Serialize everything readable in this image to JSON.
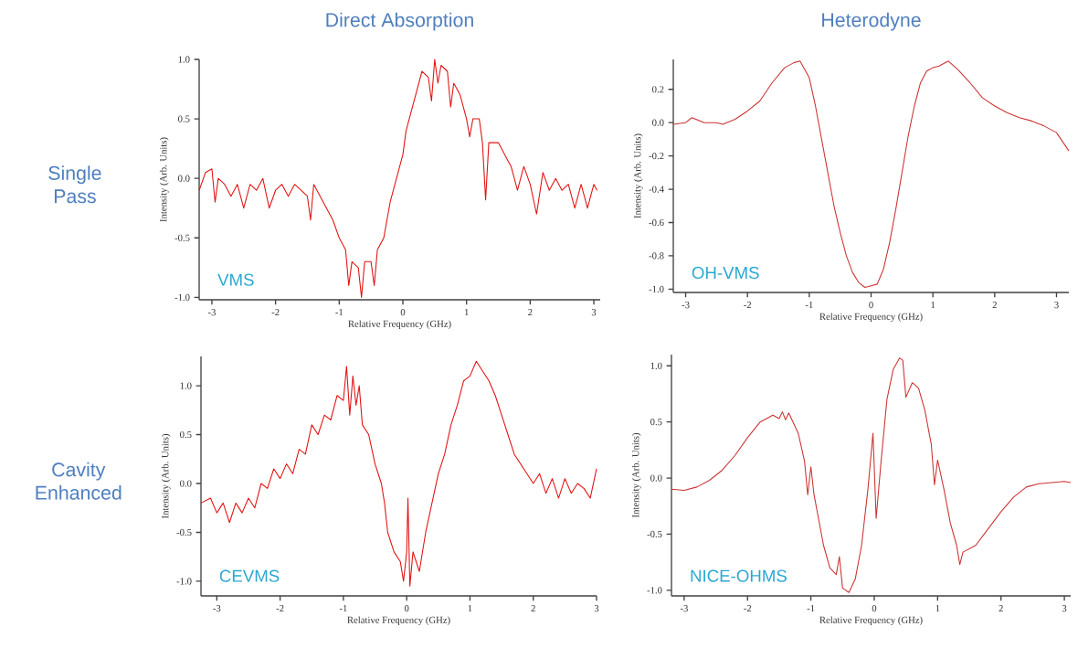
{
  "chart_data": [
    {
      "type": "line",
      "title": "Direct Absorption",
      "xlabel": "Relative Frequency (GHz)",
      "ylabel": "Intensity (Arb. Units)",
      "color": "#e21212",
      "annotations": [
        "VMS",
        "Single Pass"
      ],
      "xlim": [
        -3.2,
        3.1
      ],
      "ylim": [
        -1.02,
        1.0
      ],
      "xticks": [
        -3,
        -2,
        -1,
        0,
        1,
        2,
        3
      ],
      "yticks": [
        {
          "value": -1,
          "label": "-1.0"
        },
        {
          "value": -0.5,
          "label": "-0.5"
        },
        {
          "value": 0,
          "label": "0.0"
        },
        {
          "value": 0.5,
          "label": "0.5"
        },
        {
          "value": 1,
          "label": "1.0"
        }
      ],
      "x": [
        -3.2,
        -3.1,
        -3.0,
        -2.95,
        -2.9,
        -2.8,
        -2.7,
        -2.6,
        -2.5,
        -2.4,
        -2.3,
        -2.2,
        -2.1,
        -2.0,
        -1.9,
        -1.8,
        -1.7,
        -1.6,
        -1.5,
        -1.45,
        -1.4,
        -1.3,
        -1.2,
        -1.1,
        -1.0,
        -0.9,
        -0.85,
        -0.8,
        -0.7,
        -0.65,
        -0.6,
        -0.5,
        -0.45,
        -0.4,
        -0.3,
        -0.2,
        -0.1,
        0.0,
        0.05,
        0.1,
        0.2,
        0.3,
        0.4,
        0.45,
        0.5,
        0.55,
        0.6,
        0.7,
        0.75,
        0.8,
        0.9,
        1.0,
        1.05,
        1.1,
        1.2,
        1.25,
        1.3,
        1.35,
        1.5,
        1.6,
        1.7,
        1.8,
        1.9,
        2.0,
        2.1,
        2.2,
        2.3,
        2.4,
        2.5,
        2.6,
        2.7,
        2.8,
        2.9,
        3.0,
        3.05
      ],
      "values": [
        -0.1,
        0.05,
        0.08,
        -0.2,
        0.0,
        -0.05,
        -0.15,
        -0.05,
        -0.25,
        -0.05,
        -0.1,
        0.0,
        -0.25,
        -0.1,
        -0.05,
        -0.15,
        -0.05,
        -0.1,
        -0.15,
        -0.35,
        -0.05,
        -0.15,
        -0.25,
        -0.35,
        -0.5,
        -0.6,
        -0.9,
        -0.7,
        -0.75,
        -1.0,
        -0.7,
        -0.7,
        -0.9,
        -0.6,
        -0.5,
        -0.2,
        0.0,
        0.2,
        0.4,
        0.5,
        0.7,
        0.9,
        0.85,
        0.65,
        1.0,
        0.8,
        0.95,
        0.9,
        0.6,
        0.8,
        0.7,
        0.5,
        0.35,
        0.5,
        0.5,
        0.3,
        -0.18,
        0.3,
        0.3,
        0.2,
        0.1,
        -0.1,
        0.1,
        -0.05,
        -0.3,
        0.05,
        -0.1,
        0.0,
        -0.1,
        -0.05,
        -0.25,
        -0.05,
        -0.25,
        -0.05,
        -0.1
      ]
    },
    {
      "type": "line",
      "title": "Heterodyne",
      "xlabel": "Relative Frequency (GHz)",
      "ylabel": "Intensity (Arb. Units)",
      "color": "#cc3333",
      "annotations": [
        "OH-VMS"
      ],
      "xlim": [
        -3.2,
        3.2
      ],
      "ylim": [
        -1.02,
        0.38
      ],
      "xticks": [
        -3,
        -2,
        -1,
        0,
        1,
        2,
        3
      ],
      "yticks": [
        {
          "value": -1,
          "label": "-1.0"
        },
        {
          "value": -0.8,
          "label": "-0.8"
        },
        {
          "value": -0.6,
          "label": "-0.6"
        },
        {
          "value": -0.4,
          "label": "-0.4"
        },
        {
          "value": -0.2,
          "label": "-0.2"
        },
        {
          "value": 0,
          "label": "0.0"
        },
        {
          "value": 0.2,
          "label": "0.2"
        }
      ],
      "x": [
        -3.2,
        -3.0,
        -2.9,
        -2.7,
        -2.5,
        -2.4,
        -2.2,
        -2.0,
        -1.8,
        -1.6,
        -1.4,
        -1.25,
        -1.15,
        -1.0,
        -0.9,
        -0.8,
        -0.7,
        -0.6,
        -0.5,
        -0.4,
        -0.3,
        -0.2,
        -0.1,
        0.0,
        0.1,
        0.2,
        0.3,
        0.4,
        0.5,
        0.6,
        0.7,
        0.8,
        0.9,
        1.0,
        1.1,
        1.25,
        1.4,
        1.6,
        1.8,
        2.0,
        2.2,
        2.4,
        2.6,
        2.8,
        3.0,
        3.2
      ],
      "values": [
        -0.01,
        0.0,
        0.03,
        0.0,
        0.0,
        -0.01,
        0.02,
        0.07,
        0.13,
        0.24,
        0.33,
        0.36,
        0.37,
        0.27,
        0.1,
        -0.1,
        -0.3,
        -0.5,
        -0.66,
        -0.8,
        -0.9,
        -0.96,
        -0.99,
        -0.98,
        -0.97,
        -0.88,
        -0.72,
        -0.52,
        -0.3,
        -0.08,
        0.1,
        0.24,
        0.31,
        0.33,
        0.34,
        0.37,
        0.32,
        0.24,
        0.15,
        0.1,
        0.06,
        0.03,
        0.01,
        -0.02,
        -0.06,
        -0.17
      ]
    },
    {
      "type": "line",
      "xlabel": "Relative Frequency (GHz)",
      "ylabel": "Intensity (Arb. Units)",
      "color": "#e21212",
      "annotations": [
        "CEVMS",
        "Cavity Enhanced"
      ],
      "xlim": [
        -3.25,
        3.0
      ],
      "ylim": [
        -1.15,
        1.3
      ],
      "xticks": [
        -3,
        -2,
        -1,
        0,
        1,
        2,
        3
      ],
      "yticks": [
        {
          "value": -1,
          "label": "-1.0"
        },
        {
          "value": -0.5,
          "label": "-0.5"
        },
        {
          "value": 0,
          "label": "0.0"
        },
        {
          "value": 0.5,
          "label": "0.5"
        },
        {
          "value": 1,
          "label": "1.0"
        }
      ],
      "x": [
        -3.25,
        -3.1,
        -3.0,
        -2.9,
        -2.8,
        -2.7,
        -2.6,
        -2.5,
        -2.4,
        -2.3,
        -2.2,
        -2.1,
        -2.0,
        -1.9,
        -1.8,
        -1.7,
        -1.6,
        -1.5,
        -1.4,
        -1.3,
        -1.2,
        -1.1,
        -1.0,
        -0.95,
        -0.9,
        -0.85,
        -0.8,
        -0.75,
        -0.7,
        -0.6,
        -0.5,
        -0.4,
        -0.35,
        -0.3,
        -0.2,
        -0.1,
        -0.05,
        0.0,
        0.02,
        0.05,
        0.1,
        0.2,
        0.3,
        0.4,
        0.5,
        0.6,
        0.7,
        0.8,
        0.9,
        1.0,
        1.1,
        1.2,
        1.3,
        1.4,
        1.5,
        1.6,
        1.7,
        1.8,
        1.9,
        2.0,
        2.1,
        2.2,
        2.3,
        2.4,
        2.5,
        2.6,
        2.7,
        2.8,
        2.9,
        3.0
      ],
      "values": [
        -0.2,
        -0.15,
        -0.3,
        -0.2,
        -0.4,
        -0.2,
        -0.3,
        -0.15,
        -0.25,
        0.0,
        -0.05,
        0.15,
        0.05,
        0.2,
        0.1,
        0.35,
        0.3,
        0.6,
        0.5,
        0.7,
        0.65,
        0.9,
        0.85,
        1.2,
        0.7,
        1.1,
        0.8,
        1.0,
        0.6,
        0.5,
        0.2,
        0.0,
        -0.2,
        -0.5,
        -0.7,
        -0.8,
        -1.0,
        -0.7,
        -0.15,
        -1.05,
        -0.7,
        -0.9,
        -0.5,
        -0.2,
        0.1,
        0.3,
        0.6,
        0.8,
        1.05,
        1.1,
        1.25,
        1.15,
        1.05,
        0.9,
        0.7,
        0.5,
        0.3,
        0.2,
        0.1,
        0.0,
        0.1,
        -0.1,
        0.05,
        -0.15,
        0.05,
        -0.1,
        0.0,
        -0.05,
        -0.15,
        0.15
      ]
    },
    {
      "type": "line",
      "xlabel": "Relative Frequency (GHz)",
      "ylabel": "Intensity (Arb. Units)",
      "color": "#cc3333",
      "annotations": [
        "NICE-OHMS"
      ],
      "xlim": [
        -3.2,
        3.1
      ],
      "ylim": [
        -1.05,
        1.1
      ],
      "xticks": [
        -3,
        -2,
        -1,
        0,
        1,
        2,
        3
      ],
      "yticks": [
        {
          "value": -1,
          "label": "-1.0"
        },
        {
          "value": -0.5,
          "label": "-0.5"
        },
        {
          "value": 0,
          "label": "0.0"
        },
        {
          "value": 0.5,
          "label": "0.5"
        },
        {
          "value": 1,
          "label": "1.0"
        }
      ],
      "x": [
        -3.2,
        -3.0,
        -2.8,
        -2.6,
        -2.4,
        -2.2,
        -2.0,
        -1.8,
        -1.6,
        -1.5,
        -1.45,
        -1.4,
        -1.35,
        -1.2,
        -1.1,
        -1.05,
        -1.0,
        -0.95,
        -0.8,
        -0.7,
        -0.6,
        -0.55,
        -0.5,
        -0.4,
        -0.3,
        -0.2,
        -0.1,
        -0.02,
        0.03,
        0.1,
        0.2,
        0.3,
        0.4,
        0.45,
        0.5,
        0.6,
        0.7,
        0.8,
        0.9,
        0.95,
        1.0,
        1.1,
        1.2,
        1.3,
        1.35,
        1.4,
        1.6,
        1.8,
        2.0,
        2.2,
        2.4,
        2.6,
        2.8,
        3.0,
        3.1
      ],
      "values": [
        -0.1,
        -0.11,
        -0.08,
        -0.02,
        0.07,
        0.2,
        0.36,
        0.5,
        0.56,
        0.53,
        0.59,
        0.52,
        0.58,
        0.4,
        0.15,
        -0.15,
        0.1,
        -0.15,
        -0.6,
        -0.8,
        -0.86,
        -0.7,
        -0.98,
        -1.02,
        -0.9,
        -0.6,
        -0.1,
        0.4,
        -0.36,
        0.1,
        0.7,
        0.97,
        1.07,
        1.05,
        0.72,
        0.85,
        0.8,
        0.6,
        0.3,
        -0.06,
        0.16,
        -0.1,
        -0.4,
        -0.6,
        -0.77,
        -0.66,
        -0.6,
        -0.45,
        -0.3,
        -0.17,
        -0.08,
        -0.05,
        -0.04,
        -0.03,
        -0.04
      ]
    }
  ]
}
